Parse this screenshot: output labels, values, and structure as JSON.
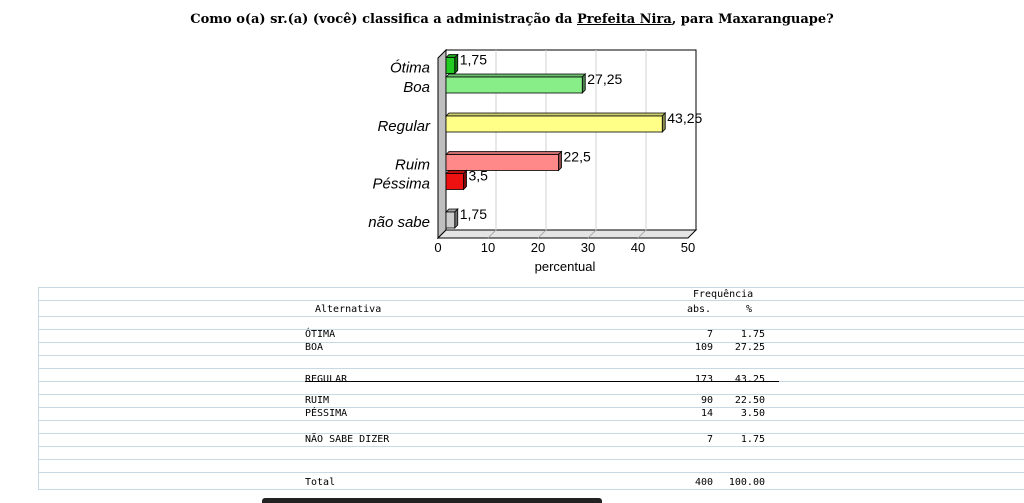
{
  "title": {
    "prefix": "Como o(a) sr.(a) (você) classifica a administração da ",
    "underlined": "Prefeita Nira",
    "suffix": ", para Maxaranguape?"
  },
  "chart_data": {
    "type": "bar",
    "orientation": "horizontal",
    "categories": [
      "Ótima",
      "Boa",
      "Regular",
      "Ruim",
      "Péssima",
      "não sabe"
    ],
    "values": [
      1.75,
      27.25,
      43.25,
      22.5,
      3.5,
      1.75
    ],
    "value_labels": [
      "1,75",
      "27,25",
      "43,25",
      "22,5",
      "3,5",
      "1,75"
    ],
    "colors": [
      "#22cc22",
      "#88ee88",
      "#ffff88",
      "#ff8888",
      "#ee1111",
      "#cccccc"
    ],
    "xlabel": "percentual",
    "xlim": [
      0,
      50
    ],
    "xticks": [
      0,
      10,
      20,
      30,
      40,
      50
    ],
    "grid": true
  },
  "table": {
    "header_group": "Frequência",
    "col_alt": "Alternativa",
    "col_abs": "abs.",
    "col_pct": "%",
    "rows": [
      {
        "label": "ÓTIMA",
        "abs": "7",
        "pct": "1.75"
      },
      {
        "label": "BOA",
        "abs": "109",
        "pct": "27.25"
      },
      {
        "label": "REGULAR",
        "abs": "173",
        "pct": "43.25"
      },
      {
        "label": "RUIM",
        "abs": "90",
        "pct": "22.50"
      },
      {
        "label": "PÉSSIMA",
        "abs": "14",
        "pct": "3.50"
      },
      {
        "label": "NÃO SABE DIZER",
        "abs": "7",
        "pct": "1.75"
      }
    ],
    "total": {
      "label": "Total",
      "abs": "400",
      "pct": "100.00"
    }
  }
}
